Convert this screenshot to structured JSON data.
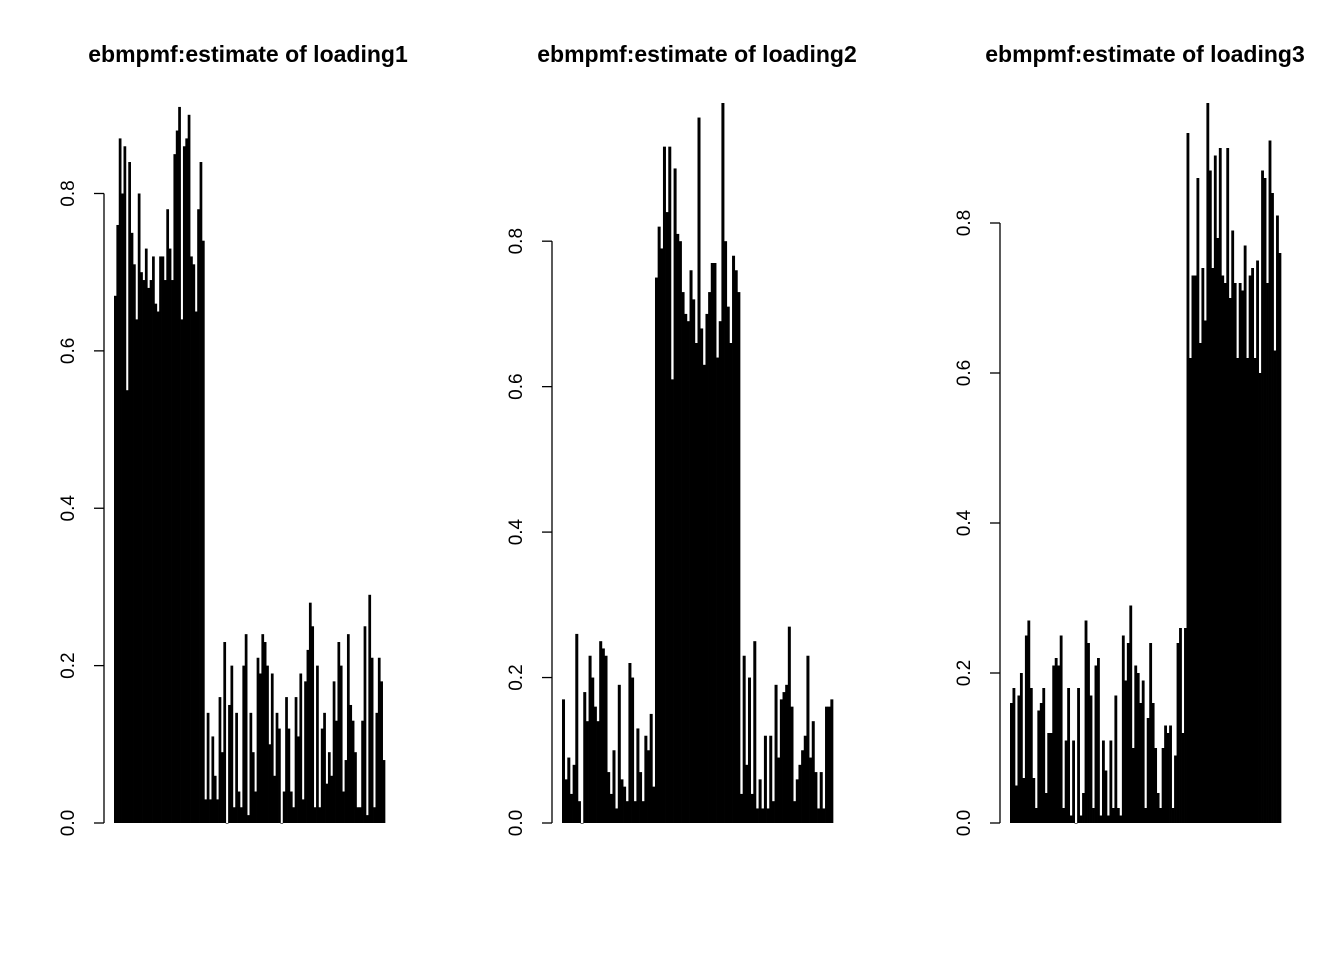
{
  "chart_data": [
    {
      "type": "bar",
      "title": "ebmpmf:estimate of loading1",
      "xlabel": "",
      "ylabel": "",
      "ylim": [
        0,
        0.915
      ],
      "yticks": [
        "0.0",
        "0.2",
        "0.4",
        "0.6",
        "0.8"
      ],
      "ytick_values": [
        0,
        0.2,
        0.4,
        0.6,
        0.8
      ],
      "bar_color": "#000000",
      "values": [
        0.67,
        0.76,
        0.87,
        0.8,
        0.86,
        0.55,
        0.84,
        0.75,
        0.71,
        0.64,
        0.8,
        0.7,
        0.69,
        0.73,
        0.68,
        0.69,
        0.72,
        0.66,
        0.65,
        0.72,
        0.72,
        0.69,
        0.78,
        0.73,
        0.69,
        0.85,
        0.88,
        0.91,
        0.64,
        0.86,
        0.87,
        0.9,
        0.72,
        0.71,
        0.65,
        0.78,
        0.84,
        0.74,
        0.03,
        0.14,
        0.03,
        0.11,
        0.06,
        0.03,
        0.16,
        0.09,
        0.23,
        0.0,
        0.15,
        0.2,
        0.02,
        0.14,
        0.04,
        0.02,
        0.2,
        0.24,
        0.01,
        0.14,
        0.09,
        0.04,
        0.21,
        0.19,
        0.24,
        0.23,
        0.2,
        0.1,
        0.19,
        0.06,
        0.14,
        0.12,
        0.0,
        0.04,
        0.16,
        0.12,
        0.04,
        0.02,
        0.16,
        0.11,
        0.19,
        0.03,
        0.18,
        0.22,
        0.28,
        0.25,
        0.02,
        0.2,
        0.02,
        0.12,
        0.14,
        0.05,
        0.09,
        0.06,
        0.18,
        0.13,
        0.23,
        0.2,
        0.04,
        0.08,
        0.24,
        0.15,
        0.13,
        0.09,
        0.02,
        0.02,
        0.13,
        0.25,
        0.01,
        0.29,
        0.21,
        0.02,
        0.14,
        0.21,
        0.18,
        0.08
      ]
    },
    {
      "type": "bar",
      "title": "ebmpmf:estimate of loading2",
      "xlabel": "",
      "ylabel": "",
      "ylim": [
        0,
        0.99
      ],
      "yticks": [
        "0.0",
        "0.2",
        "0.4",
        "0.6",
        "0.8"
      ],
      "ytick_values": [
        0,
        0.2,
        0.4,
        0.6,
        0.8
      ],
      "bar_color": "#000000",
      "values": [
        0.17,
        0.06,
        0.09,
        0.04,
        0.08,
        0.26,
        0.03,
        0.0,
        0.18,
        0.14,
        0.23,
        0.2,
        0.16,
        0.14,
        0.25,
        0.24,
        0.23,
        0.07,
        0.04,
        0.1,
        0.02,
        0.19,
        0.06,
        0.05,
        0.03,
        0.22,
        0.2,
        0.03,
        0.13,
        0.07,
        0.03,
        0.12,
        0.1,
        0.15,
        0.05,
        0.75,
        0.82,
        0.79,
        0.93,
        0.84,
        0.93,
        0.61,
        0.9,
        0.81,
        0.8,
        0.73,
        0.7,
        0.69,
        0.76,
        0.72,
        0.66,
        0.97,
        0.68,
        0.63,
        0.7,
        0.73,
        0.77,
        0.77,
        0.64,
        0.69,
        0.99,
        0.8,
        0.71,
        0.66,
        0.78,
        0.76,
        0.73,
        0.04,
        0.23,
        0.08,
        0.2,
        0.04,
        0.25,
        0.02,
        0.06,
        0.02,
        0.12,
        0.02,
        0.12,
        0.03,
        0.19,
        0.09,
        0.17,
        0.18,
        0.19,
        0.27,
        0.16,
        0.03,
        0.06,
        0.08,
        0.1,
        0.12,
        0.23,
        0.09,
        0.14,
        0.07,
        0.02,
        0.07,
        0.02,
        0.16,
        0.16,
        0.17
      ]
    },
    {
      "type": "bar",
      "title": "ebmpmf:estimate of loading3",
      "xlabel": "",
      "ylabel": "",
      "ylim": [
        0,
        0.96
      ],
      "yticks": [
        "0.0",
        "0.2",
        "0.4",
        "0.6",
        "0.8"
      ],
      "ytick_values": [
        0,
        0.2,
        0.4,
        0.6,
        0.8
      ],
      "bar_color": "#000000",
      "values": [
        0.16,
        0.18,
        0.05,
        0.17,
        0.2,
        0.06,
        0.25,
        0.27,
        0.18,
        0.06,
        0.02,
        0.15,
        0.16,
        0.18,
        0.04,
        0.12,
        0.12,
        0.21,
        0.22,
        0.21,
        0.25,
        0.02,
        0.11,
        0.18,
        0.01,
        0.11,
        0.0,
        0.18,
        0.01,
        0.04,
        0.27,
        0.24,
        0.17,
        0.02,
        0.21,
        0.22,
        0.01,
        0.11,
        0.07,
        0.01,
        0.11,
        0.02,
        0.17,
        0.02,
        0.01,
        0.25,
        0.19,
        0.24,
        0.29,
        0.1,
        0.21,
        0.2,
        0.16,
        0.19,
        0.02,
        0.14,
        0.24,
        0.16,
        0.1,
        0.04,
        0.02,
        0.1,
        0.13,
        0.12,
        0.13,
        0.02,
        0.09,
        0.24,
        0.26,
        0.12,
        0.26,
        0.92,
        0.62,
        0.73,
        0.73,
        0.86,
        0.64,
        0.74,
        0.67,
        0.96,
        0.87,
        0.74,
        0.89,
        0.78,
        0.9,
        0.73,
        0.72,
        0.9,
        0.7,
        0.79,
        0.72,
        0.62,
        0.72,
        0.71,
        0.77,
        0.62,
        0.73,
        0.74,
        0.62,
        0.75,
        0.6,
        0.87,
        0.86,
        0.72,
        0.91,
        0.84,
        0.63,
        0.81,
        0.76
      ]
    }
  ]
}
